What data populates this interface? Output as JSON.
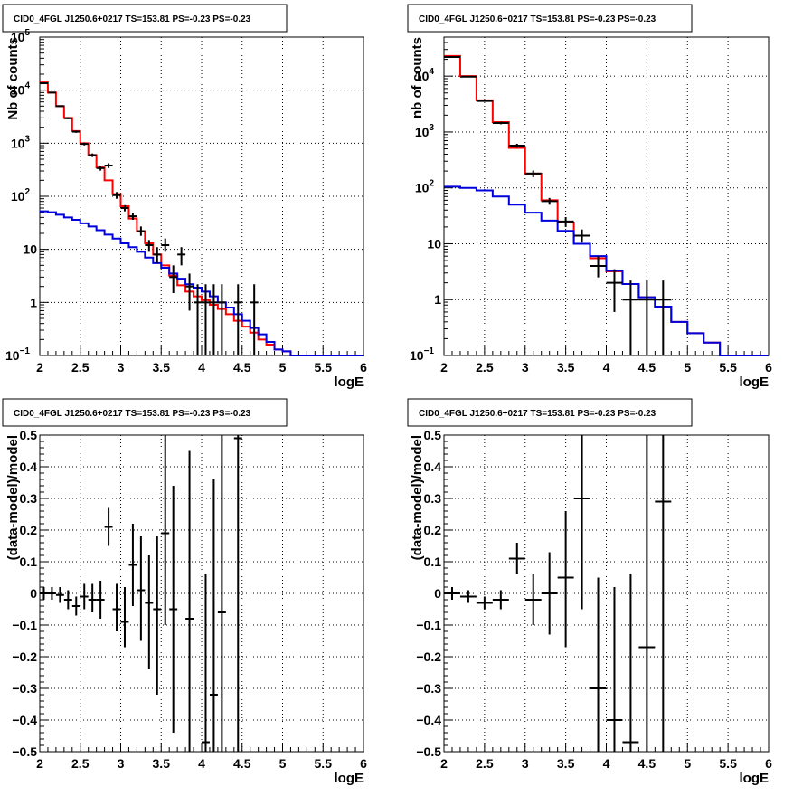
{
  "chart_data": [
    {
      "type": "step-histogram-with-errorbars",
      "title": "CID0_4FGL J1250.6+0217 TS=153.81 PS=-0.23 PS=-0.23",
      "xlabel": "logE",
      "ylabel": "Nb of counts",
      "xlim": [
        2,
        6
      ],
      "ylim": [
        0.1,
        100000
      ],
      "yscale": "log",
      "grid": true,
      "xticks": [
        "2",
        "2.5",
        "3",
        "3.5",
        "4",
        "4.5",
        "5",
        "5.5",
        "6"
      ],
      "yticks": [
        {
          "v": 0.1,
          "label": "10",
          "sup": "−1"
        },
        {
          "v": 1,
          "label": "1",
          "sup": ""
        },
        {
          "v": 10,
          "label": "10",
          "sup": ""
        },
        {
          "v": 100,
          "label": "10",
          "sup": "2"
        },
        {
          "v": 1000,
          "label": "10",
          "sup": "3"
        },
        {
          "v": 10000,
          "label": "10",
          "sup": "4"
        },
        {
          "v": 100000,
          "label": "10",
          "sup": "5"
        }
      ],
      "bin_edges": [
        2.0,
        2.1,
        2.2,
        2.3,
        2.4,
        2.5,
        2.6,
        2.7,
        2.8,
        2.9,
        3.0,
        3.1,
        3.2,
        3.3,
        3.4,
        3.5,
        3.6,
        3.7,
        3.8,
        3.9,
        4.0,
        4.1,
        4.2,
        4.3,
        4.4,
        4.5,
        4.6,
        4.7,
        4.8,
        4.9,
        5.0,
        5.1,
        5.2,
        5.3,
        5.4,
        5.5,
        5.6,
        5.7,
        5.8,
        5.9,
        6.0
      ],
      "series": [
        {
          "name": "",
          "color": "#ff0000",
          "values": [
            14000,
            9000,
            5000,
            3000,
            1700,
            1000,
            600,
            350,
            200,
            110,
            65,
            38,
            22,
            13,
            8,
            5,
            3.2,
            2.1,
            1.6,
            1.3,
            1.1,
            0.9,
            0.75,
            0.6,
            0.45,
            0.35,
            0.27,
            0.2,
            0.16,
            0.13,
            0.12,
            0.1,
            0.1,
            0.1,
            0.1,
            0.1,
            0.1,
            0.1,
            0.1,
            0.1
          ]
        },
        {
          "name": "",
          "color": "#0000dd",
          "values": [
            52,
            50,
            45,
            40,
            36,
            31,
            27,
            23,
            19,
            16,
            13,
            11,
            9,
            7,
            5.5,
            4.5,
            3.5,
            2.8,
            2.2,
            1.9,
            1.6,
            1.3,
            1.0,
            0.8,
            0.6,
            0.45,
            0.33,
            0.25,
            0.18,
            0.13,
            0.12,
            0.1,
            0.1,
            0.1,
            0.1,
            0.1,
            0.1,
            0.1,
            0.1,
            0.1
          ]
        }
      ],
      "data_points": [
        {
          "x": 2.05,
          "y": 13500,
          "lo": 13260,
          "hi": 13740
        },
        {
          "x": 2.15,
          "y": 9000,
          "lo": 8800,
          "hi": 9200
        },
        {
          "x": 2.25,
          "y": 5000,
          "lo": 4850,
          "hi": 5150
        },
        {
          "x": 2.35,
          "y": 2950,
          "lo": 2840,
          "hi": 3060
        },
        {
          "x": 2.45,
          "y": 1650,
          "lo": 1570,
          "hi": 1730
        },
        {
          "x": 2.55,
          "y": 970,
          "lo": 910,
          "hi": 1030
        },
        {
          "x": 2.65,
          "y": 595,
          "lo": 550,
          "hi": 640
        },
        {
          "x": 2.75,
          "y": 340,
          "lo": 305,
          "hi": 375
        },
        {
          "x": 2.85,
          "y": 380,
          "lo": 340,
          "hi": 420
        },
        {
          "x": 2.95,
          "y": 105,
          "lo": 90,
          "hi": 120
        },
        {
          "x": 3.05,
          "y": 60,
          "lo": 52,
          "hi": 68
        },
        {
          "x": 3.15,
          "y": 42,
          "lo": 36,
          "hi": 48
        },
        {
          "x": 3.25,
          "y": 22,
          "lo": 18,
          "hi": 27
        },
        {
          "x": 3.35,
          "y": 12,
          "lo": 9,
          "hi": 15
        },
        {
          "x": 3.45,
          "y": 8,
          "lo": 5.5,
          "hi": 11
        },
        {
          "x": 3.55,
          "y": 12,
          "lo": 9,
          "hi": 16
        },
        {
          "x": 3.65,
          "y": 3,
          "lo": 1.5,
          "hi": 5
        },
        {
          "x": 3.75,
          "y": 8,
          "lo": 5,
          "hi": 11
        },
        {
          "x": 3.85,
          "y": 2,
          "lo": 0.7,
          "hi": 3.5
        },
        {
          "x": 3.95,
          "y": 1,
          "lo": 0.1,
          "hi": 2.2
        },
        {
          "x": 4.05,
          "y": 1,
          "lo": 0.1,
          "hi": 2.2
        },
        {
          "x": 4.15,
          "y": 1,
          "lo": 0.1,
          "hi": 2.2
        },
        {
          "x": 4.25,
          "y": 1,
          "lo": 0.1,
          "hi": 2.2
        },
        {
          "x": 4.45,
          "y": 1,
          "lo": 0.1,
          "hi": 2.2
        },
        {
          "x": 4.65,
          "y": 1,
          "lo": 0.1,
          "hi": 2.2
        }
      ]
    },
    {
      "type": "step-histogram-with-errorbars",
      "title": "CID0_4FGL J1250.6+0217 TS=153.81 PS=-0.23 PS=-0.23",
      "xlabel": "logE",
      "ylabel": "nb of counts",
      "xlim": [
        2,
        6
      ],
      "ylim": [
        0.1,
        50000
      ],
      "yscale": "log",
      "grid": true,
      "xticks": [
        "2",
        "2.5",
        "3",
        "3.5",
        "4",
        "4.5",
        "5",
        "5.5",
        "6"
      ],
      "yticks": [
        {
          "v": 0.1,
          "label": "10",
          "sup": "−1"
        },
        {
          "v": 1,
          "label": "1",
          "sup": ""
        },
        {
          "v": 10,
          "label": "10",
          "sup": ""
        },
        {
          "v": 100,
          "label": "10",
          "sup": "2"
        },
        {
          "v": 1000,
          "label": "10",
          "sup": "3"
        },
        {
          "v": 10000,
          "label": "10",
          "sup": "4"
        }
      ],
      "bin_edges": [
        2.0,
        2.2,
        2.4,
        2.6,
        2.8,
        3.0,
        3.2,
        3.4,
        3.6,
        3.8,
        4.0,
        4.2,
        4.4,
        4.6,
        4.8,
        5.0,
        5.2,
        5.4,
        5.6,
        5.8,
        6.0
      ],
      "series": [
        {
          "name": "",
          "color": "#ff0000",
          "values": [
            23000,
            10000,
            3700,
            1500,
            520,
            180,
            60,
            24,
            10,
            5.5,
            3.2,
            1.9,
            1.1,
            0.75,
            0.4,
            0.25,
            0.17,
            0.1,
            0.1,
            0.1
          ]
        },
        {
          "name": "",
          "color": "#0000dd",
          "values": [
            105,
            100,
            90,
            70,
            50,
            36,
            26,
            17,
            10,
            6,
            3.3,
            1.9,
            1.1,
            0.75,
            0.4,
            0.25,
            0.17,
            0.1,
            0.1,
            0.1
          ]
        }
      ],
      "data_points": [
        {
          "x": 2.1,
          "y": 22000,
          "lo": 21700,
          "hi": 22300
        },
        {
          "x": 2.3,
          "y": 9800,
          "lo": 9600,
          "hi": 10000
        },
        {
          "x": 2.5,
          "y": 3600,
          "lo": 3480,
          "hi": 3720
        },
        {
          "x": 2.7,
          "y": 1450,
          "lo": 1375,
          "hi": 1525
        },
        {
          "x": 2.9,
          "y": 570,
          "lo": 525,
          "hi": 615
        },
        {
          "x": 3.1,
          "y": 180,
          "lo": 155,
          "hi": 205
        },
        {
          "x": 3.3,
          "y": 58,
          "lo": 50,
          "hi": 66
        },
        {
          "x": 3.5,
          "y": 25,
          "lo": 20,
          "hi": 30
        },
        {
          "x": 3.7,
          "y": 14,
          "lo": 10.5,
          "hi": 18
        },
        {
          "x": 3.9,
          "y": 4,
          "lo": 2.5,
          "hi": 6
        },
        {
          "x": 4.1,
          "y": 2,
          "lo": 0.6,
          "hi": 3.5
        },
        {
          "x": 4.3,
          "y": 1,
          "lo": 0.1,
          "hi": 2.2
        },
        {
          "x": 4.5,
          "y": 1,
          "lo": 0.1,
          "hi": 2.2
        },
        {
          "x": 4.7,
          "y": 1,
          "lo": 0.1,
          "hi": 2.2
        }
      ]
    },
    {
      "type": "scatter-with-errorbars",
      "title": "CID0_4FGL J1250.6+0217 TS=153.81 PS=-0.23 PS=-0.23",
      "xlabel": "logE",
      "ylabel": "(data-model)/model",
      "xlim": [
        2,
        6
      ],
      "ylim": [
        -0.5,
        0.5
      ],
      "yscale": "linear",
      "grid": true,
      "xticks": [
        "2",
        "2.5",
        "3",
        "3.5",
        "4",
        "4.5",
        "5",
        "5.5",
        "6"
      ],
      "yticks": [
        {
          "v": -0.5,
          "label": "−0.5"
        },
        {
          "v": -0.4,
          "label": "−0.4"
        },
        {
          "v": -0.3,
          "label": "−0.3"
        },
        {
          "v": -0.2,
          "label": "−0.2"
        },
        {
          "v": -0.1,
          "label": "−0.1"
        },
        {
          "v": 0,
          "label": "0"
        },
        {
          "v": 0.1,
          "label": "0.1"
        },
        {
          "v": 0.2,
          "label": "0.2"
        },
        {
          "v": 0.3,
          "label": "0.3"
        },
        {
          "v": 0.4,
          "label": "0.4"
        },
        {
          "v": 0.5,
          "label": "0.5"
        }
      ],
      "half_width": 0.05,
      "data_points": [
        {
          "x": 2.05,
          "y": 0.0,
          "lo": -0.02,
          "hi": 0.02
        },
        {
          "x": 2.15,
          "y": 0.0,
          "lo": -0.02,
          "hi": 0.02
        },
        {
          "x": 2.25,
          "y": -0.005,
          "lo": -0.03,
          "hi": 0.02
        },
        {
          "x": 2.35,
          "y": -0.02,
          "lo": -0.05,
          "hi": 0.01
        },
        {
          "x": 2.45,
          "y": -0.04,
          "lo": -0.07,
          "hi": -0.01
        },
        {
          "x": 2.55,
          "y": -0.01,
          "lo": -0.05,
          "hi": 0.03
        },
        {
          "x": 2.65,
          "y": -0.02,
          "lo": -0.06,
          "hi": 0.03
        },
        {
          "x": 2.75,
          "y": -0.02,
          "lo": -0.08,
          "hi": 0.04
        },
        {
          "x": 2.85,
          "y": 0.21,
          "lo": 0.15,
          "hi": 0.27
        },
        {
          "x": 2.95,
          "y": -0.05,
          "lo": -0.12,
          "hi": 0.03
        },
        {
          "x": 3.05,
          "y": -0.09,
          "lo": -0.17,
          "hi": 0.02
        },
        {
          "x": 3.15,
          "y": 0.09,
          "lo": -0.04,
          "hi": 0.22
        },
        {
          "x": 3.25,
          "y": 0.01,
          "lo": -0.15,
          "hi": 0.18
        },
        {
          "x": 3.35,
          "y": -0.03,
          "lo": -0.24,
          "hi": 0.12
        },
        {
          "x": 3.45,
          "y": -0.05,
          "lo": -0.32,
          "hi": 0.18
        },
        {
          "x": 3.55,
          "y": 0.19,
          "lo": -0.1,
          "hi": 0.5
        },
        {
          "x": 3.65,
          "y": -0.05,
          "lo": -0.44,
          "hi": 0.34
        },
        {
          "x": 3.85,
          "y": -0.08,
          "lo": -0.5,
          "hi": 0.45
        },
        {
          "x": 4.05,
          "y": -0.47,
          "lo": -0.5,
          "hi": 0.06
        },
        {
          "x": 4.15,
          "y": -0.32,
          "lo": -0.5,
          "hi": 0.36
        },
        {
          "x": 4.25,
          "y": -0.06,
          "lo": -0.5,
          "hi": 0.5
        },
        {
          "x": 4.45,
          "y": 0.49,
          "lo": -0.5,
          "hi": 0.5
        }
      ]
    },
    {
      "type": "scatter-with-errorbars",
      "title": "CID0_4FGL J1250.6+0217 TS=153.81 PS=-0.23 PS=-0.23",
      "xlabel": "logE",
      "ylabel": "(data-model)/model",
      "xlim": [
        2,
        6
      ],
      "ylim": [
        -0.5,
        0.5
      ],
      "yscale": "linear",
      "grid": true,
      "xticks": [
        "2",
        "2.5",
        "3",
        "3.5",
        "4",
        "4.5",
        "5",
        "5.5",
        "6"
      ],
      "yticks": [
        {
          "v": -0.5,
          "label": "−0.5"
        },
        {
          "v": -0.4,
          "label": "−0.4"
        },
        {
          "v": -0.3,
          "label": "−0.3"
        },
        {
          "v": -0.2,
          "label": "−0.2"
        },
        {
          "v": -0.1,
          "label": "−0.1"
        },
        {
          "v": 0,
          "label": "0"
        },
        {
          "v": 0.1,
          "label": "0.1"
        },
        {
          "v": 0.2,
          "label": "0.2"
        },
        {
          "v": 0.3,
          "label": "0.3"
        },
        {
          "v": 0.4,
          "label": "0.4"
        },
        {
          "v": 0.5,
          "label": "0.5"
        }
      ],
      "half_width": 0.1,
      "data_points": [
        {
          "x": 2.1,
          "y": 0.0,
          "lo": -0.02,
          "hi": 0.02
        },
        {
          "x": 2.3,
          "y": -0.01,
          "lo": -0.03,
          "hi": 0.01
        },
        {
          "x": 2.5,
          "y": -0.03,
          "lo": -0.05,
          "hi": -0.01
        },
        {
          "x": 2.7,
          "y": -0.02,
          "lo": -0.05,
          "hi": 0.01
        },
        {
          "x": 2.9,
          "y": 0.11,
          "lo": 0.06,
          "hi": 0.16
        },
        {
          "x": 3.1,
          "y": -0.02,
          "lo": -0.1,
          "hi": 0.06
        },
        {
          "x": 3.3,
          "y": 0.0,
          "lo": -0.13,
          "hi": 0.13
        },
        {
          "x": 3.5,
          "y": 0.05,
          "lo": -0.17,
          "hi": 0.26
        },
        {
          "x": 3.7,
          "y": 0.3,
          "lo": -0.05,
          "hi": 0.5
        },
        {
          "x": 3.9,
          "y": -0.3,
          "lo": -0.5,
          "hi": 0.05
        },
        {
          "x": 4.1,
          "y": -0.4,
          "lo": -0.5,
          "hi": 0.02
        },
        {
          "x": 4.3,
          "y": -0.47,
          "lo": -0.5,
          "hi": 0.06
        },
        {
          "x": 4.5,
          "y": -0.17,
          "lo": -0.5,
          "hi": 0.5
        },
        {
          "x": 4.7,
          "y": 0.29,
          "lo": -0.5,
          "hi": 0.5
        }
      ]
    }
  ]
}
